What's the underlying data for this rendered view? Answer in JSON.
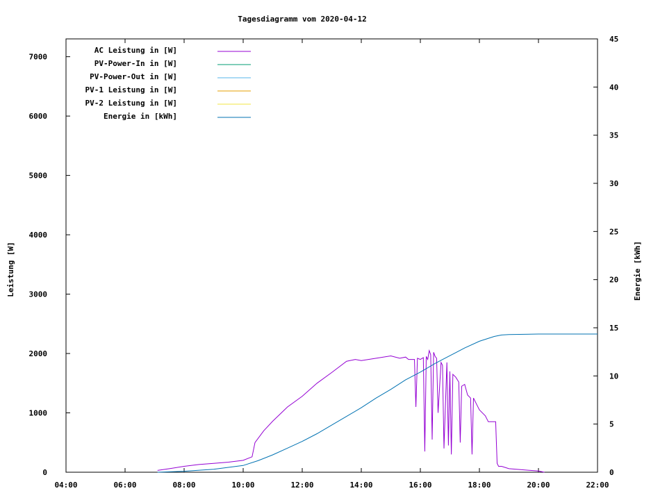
{
  "chart_data": {
    "type": "line",
    "title": "Tagesdiagramm vom 2020-04-12",
    "xlabel": "",
    "ylabel": "Leistung [W]",
    "y2label": "Energie [kWh]",
    "xlim": [
      4,
      22
    ],
    "ylim": [
      0,
      7300
    ],
    "y2lim": [
      0,
      45
    ],
    "x_ticks": [
      "04:00",
      "06:00",
      "08:00",
      "10:00",
      "12:00",
      "14:00",
      "16:00",
      "18:00",
      "20:00",
      "22:00"
    ],
    "y_ticks": [
      0,
      1000,
      2000,
      3000,
      4000,
      5000,
      6000,
      7000
    ],
    "y2_ticks": [
      0,
      5,
      10,
      15,
      20,
      25,
      30,
      35,
      40,
      45
    ],
    "grid": false,
    "legend_position": "top-left",
    "series": [
      {
        "name": "AC Leistung in [W]",
        "axis": "left",
        "color": "#9400d3",
        "x": [
          7.1,
          7.5,
          8.0,
          8.5,
          9.0,
          9.5,
          10.0,
          10.3,
          10.4,
          10.7,
          11.0,
          11.5,
          12.0,
          12.5,
          13.0,
          13.5,
          13.8,
          14.0,
          14.5,
          15.0,
          15.3,
          15.5,
          15.6,
          15.8,
          15.85,
          15.9,
          16.0,
          16.1,
          16.15,
          16.2,
          16.25,
          16.3,
          16.35,
          16.4,
          16.45,
          16.5,
          16.55,
          16.6,
          16.7,
          16.75,
          16.8,
          16.9,
          16.95,
          17.0,
          17.05,
          17.1,
          17.2,
          17.3,
          17.35,
          17.4,
          17.5,
          17.6,
          17.7,
          17.75,
          17.8,
          17.9,
          18.0,
          18.2,
          18.3,
          18.55,
          18.6,
          18.65,
          18.75,
          19.0,
          19.5,
          20.0,
          20.2
        ],
        "y": [
          30,
          60,
          100,
          130,
          150,
          170,
          200,
          260,
          500,
          700,
          860,
          1100,
          1280,
          1500,
          1680,
          1870,
          1900,
          1880,
          1920,
          1960,
          1920,
          1940,
          1900,
          1900,
          1100,
          1920,
          1900,
          1930,
          350,
          1950,
          1900,
          2050,
          1980,
          550,
          2020,
          1950,
          1920,
          1000,
          1850,
          1800,
          400,
          1850,
          450,
          1700,
          300,
          1650,
          1600,
          1520,
          500,
          1450,
          1480,
          1300,
          1250,
          300,
          1250,
          1150,
          1050,
          950,
          850,
          850,
          150,
          100,
          100,
          60,
          40,
          20,
          0
        ]
      },
      {
        "name": "PV-Power-In in [W]",
        "axis": "left",
        "color": "#009e73",
        "x": [],
        "y": []
      },
      {
        "name": "PV-Power-Out in [W]",
        "axis": "left",
        "color": "#56b4e9",
        "x": [],
        "y": []
      },
      {
        "name": "PV-1 Leistung in [W]",
        "axis": "left",
        "color": "#e69f00",
        "x": [],
        "y": []
      },
      {
        "name": "PV-2 Leistung in [W]",
        "axis": "left",
        "color": "#f0e442",
        "x": [],
        "y": []
      },
      {
        "name": "Energie in [kWh]",
        "axis": "right",
        "color": "#0072b2",
        "x": [
          7.1,
          8.0,
          9.0,
          10.0,
          10.5,
          11.0,
          11.5,
          12.0,
          12.5,
          13.0,
          13.5,
          14.0,
          14.5,
          15.0,
          15.5,
          16.0,
          16.5,
          17.0,
          17.5,
          18.0,
          18.5,
          18.75,
          19.0,
          20.0,
          22.0
        ],
        "y": [
          0,
          0.1,
          0.3,
          0.7,
          1.2,
          1.8,
          2.5,
          3.2,
          4.0,
          4.9,
          5.8,
          6.7,
          7.7,
          8.6,
          9.6,
          10.4,
          11.3,
          12.1,
          12.9,
          13.6,
          14.1,
          14.25,
          14.3,
          14.35,
          14.35
        ]
      }
    ]
  }
}
